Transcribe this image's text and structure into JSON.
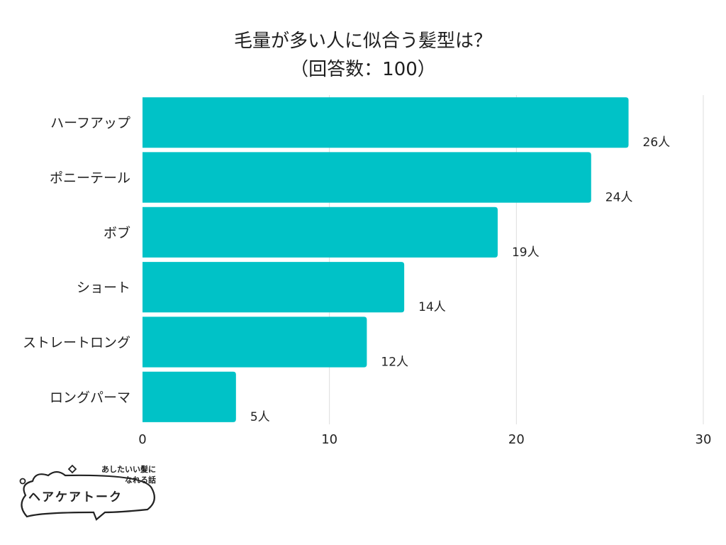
{
  "title_line1": "毛量が多い人に似合う髪型は？",
  "title_line2": "（回答数：100）",
  "chart_data": {
    "type": "bar",
    "orientation": "horizontal",
    "title": "毛量が多い人に似合う髪型は？（回答数：100）",
    "categories": [
      "ハーフアップ",
      "ポニーテール",
      "ボブ",
      "ショート",
      "ストレートロング",
      "ロングパーマ"
    ],
    "values": [
      26,
      24,
      19,
      14,
      12,
      5
    ],
    "data_labels": [
      "26人",
      "24人",
      "19人",
      "14人",
      "12人",
      "5人"
    ],
    "xlim": [
      0,
      30
    ],
    "x_ticks": [
      0,
      10,
      20,
      30
    ],
    "x_tick_labels": [
      "0",
      "10",
      "20",
      "30"
    ],
    "grid": "vertical",
    "bar_color": "#00c2c7",
    "grid_color": "#dddddd"
  },
  "logo": {
    "tagline_line1": "あしたいい髪に",
    "tagline_line2": "なれる話",
    "name": "ヘアケアトーク"
  }
}
